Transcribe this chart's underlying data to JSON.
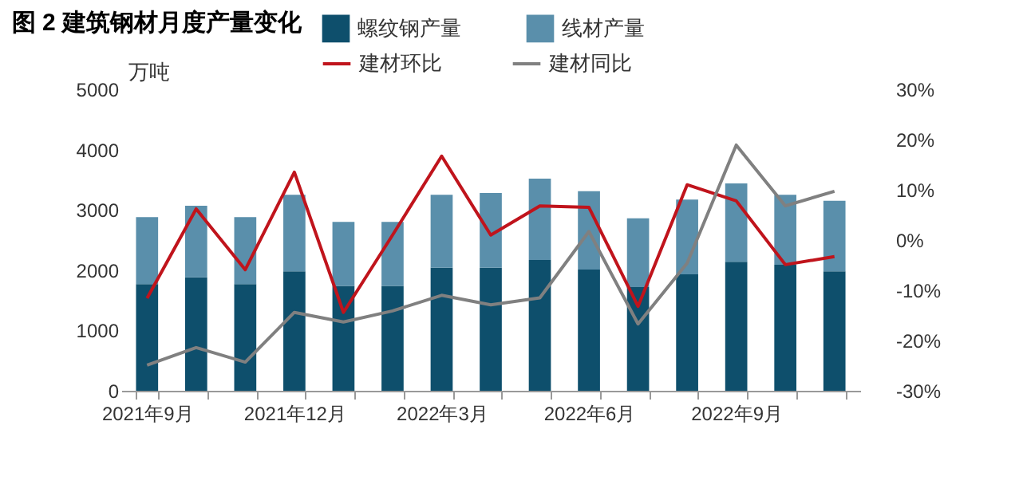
{
  "chart_data": {
    "type": "bar",
    "title": "图 2 建筑钢材月度产量变化",
    "ylabel": "万吨",
    "stacked": true,
    "categories": [
      "2021年9月",
      null,
      null,
      "2021年12月",
      null,
      null,
      "2022年3月",
      null,
      null,
      "2022年6月",
      null,
      null,
      "2022年9月",
      null,
      null
    ],
    "series": [
      {
        "name": "螺纹钢产量",
        "color": "#0e4f6c",
        "values": [
          1770,
          1880,
          1770,
          1980,
          1740,
          1740,
          2040,
          2040,
          2170,
          2010,
          1720,
          1930,
          2140,
          2090,
          1980
        ]
      },
      {
        "name": "线材产量",
        "color": "#5a8fab",
        "values": [
          1110,
          1190,
          1110,
          1270,
          1060,
          1060,
          1210,
          1240,
          1350,
          1300,
          1140,
          1240,
          1300,
          1160,
          1170
        ]
      },
      {
        "name": "建材环比",
        "type": "line",
        "axis": "y2",
        "color": "#c0141c",
        "values": [
          -11.6,
          6.2,
          -5.9,
          13.5,
          -14.4,
          1,
          16.7,
          1,
          6.8,
          6.5,
          -13.2,
          11,
          7.8,
          -4.9,
          -3.3
        ]
      },
      {
        "name": "建材同比",
        "type": "line",
        "axis": "y2",
        "color": "#808080",
        "values": [
          -24.9,
          -21.4,
          -24.3,
          -14.4,
          -16.3,
          -14.1,
          -11,
          -12.9,
          -11.5,
          1.7,
          -16.7,
          -4.6,
          18.9,
          6.8,
          9.7
        ]
      }
    ],
    "ylim": [
      0,
      5000
    ],
    "yticks": [
      0,
      1000,
      2000,
      3000,
      4000,
      5000
    ],
    "y2lim": [
      -30,
      30
    ],
    "y2ticks": [
      {
        "value": -30,
        "label": "-30%"
      },
      {
        "value": -20,
        "label": "-20%"
      },
      {
        "value": -10,
        "label": "-10%"
      },
      {
        "value": 0,
        "label": "0%"
      },
      {
        "value": 10,
        "label": "10%"
      },
      {
        "value": 20,
        "label": "20%"
      },
      {
        "value": 30,
        "label": "30%"
      }
    ],
    "grid": false,
    "legend": "top",
    "marker": "none",
    "line_style": "solid"
  }
}
